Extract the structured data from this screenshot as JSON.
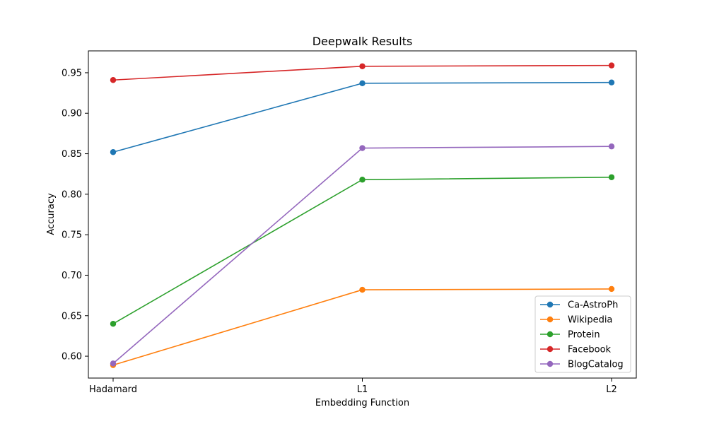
{
  "chart_data": {
    "type": "line",
    "title": "Deepwalk Results",
    "xlabel": "Embedding Function",
    "ylabel": "Accuracy",
    "categories": [
      "Hadamard",
      "L1",
      "L2"
    ],
    "ylim": [
      0.573,
      0.977
    ],
    "yticks": [
      "0.60",
      "0.65",
      "0.70",
      "0.75",
      "0.80",
      "0.85",
      "0.90",
      "0.95"
    ],
    "grid": false,
    "legend_position": "lower-right",
    "series": [
      {
        "name": "Ca-AstroPh",
        "color": "#1f77b4",
        "values": [
          0.852,
          0.937,
          0.938
        ]
      },
      {
        "name": "Wikipedia",
        "color": "#ff7f0e",
        "values": [
          0.589,
          0.682,
          0.683
        ]
      },
      {
        "name": "Protein",
        "color": "#2ca02c",
        "values": [
          0.64,
          0.818,
          0.821
        ]
      },
      {
        "name": "Facebook",
        "color": "#d62728",
        "values": [
          0.941,
          0.958,
          0.959
        ]
      },
      {
        "name": "BlogCatalog",
        "color": "#9467bd",
        "values": [
          0.591,
          0.857,
          0.859
        ]
      }
    ]
  }
}
